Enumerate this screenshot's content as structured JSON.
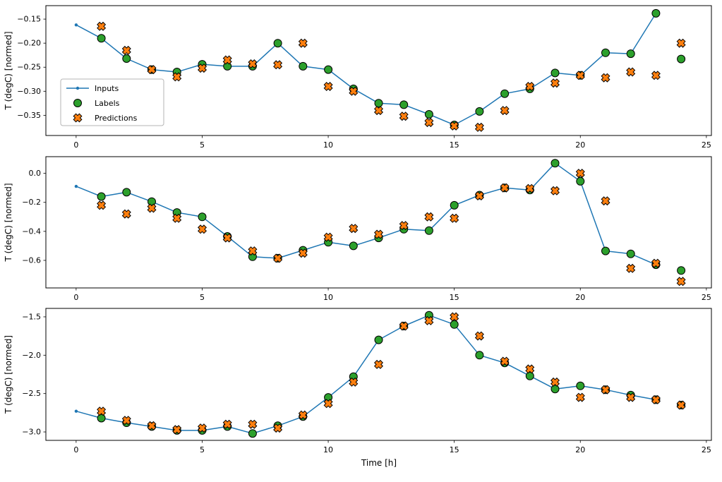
{
  "figure": {
    "background": "#ffffff",
    "xlabel": "Time [h]",
    "ylabel": "T (degC) [normed]",
    "legend": {
      "position": "upper-left-of-first-subplot",
      "items": [
        {
          "label": "Inputs",
          "type": "line-dot",
          "color": "#1f77b4"
        },
        {
          "label": "Labels",
          "type": "circle",
          "color": "#2ca02c"
        },
        {
          "label": "Predictions",
          "type": "x",
          "color": "#ff7f0e"
        }
      ]
    },
    "marker_edge_color": "#000000"
  },
  "chart_data": [
    {
      "type": "line",
      "title": "",
      "xlabel": "",
      "ylabel": "T (degC) [normed]",
      "xlim": [
        -1.2,
        25.2
      ],
      "ylim": [
        -0.392,
        -0.122
      ],
      "grid": false,
      "xticks": [
        {
          "v": 0,
          "label": "0"
        },
        {
          "v": 5,
          "label": "5"
        },
        {
          "v": 10,
          "label": "10"
        },
        {
          "v": 15,
          "label": "15"
        },
        {
          "v": 20,
          "label": "20"
        },
        {
          "v": 25,
          "label": "25"
        }
      ],
      "yticks": [
        {
          "v": -0.15,
          "label": "−0.15"
        },
        {
          "v": -0.2,
          "label": "−0.20"
        },
        {
          "v": -0.25,
          "label": "−0.25"
        },
        {
          "v": -0.3,
          "label": "−0.30"
        },
        {
          "v": -0.35,
          "label": "−0.35"
        }
      ],
      "series": [
        {
          "name": "Inputs",
          "type": "line",
          "color": "#1f77b4",
          "x": [
            0,
            1,
            2,
            3,
            4,
            5,
            6,
            7,
            8,
            9,
            10,
            11,
            12,
            13,
            14,
            15,
            16,
            17,
            18,
            19,
            20,
            21,
            22,
            23
          ],
          "y": [
            -0.162,
            -0.19,
            -0.232,
            -0.255,
            -0.26,
            -0.244,
            -0.248,
            -0.248,
            -0.2,
            -0.248,
            -0.255,
            -0.295,
            -0.325,
            -0.328,
            -0.348,
            -0.37,
            -0.342,
            -0.305,
            -0.295,
            -0.262,
            -0.267,
            -0.22,
            -0.222,
            -0.138
          ]
        },
        {
          "name": "Labels",
          "type": "scatter-circle",
          "color": "#2ca02c",
          "x": [
            1,
            2,
            3,
            4,
            5,
            6,
            7,
            8,
            9,
            10,
            11,
            12,
            13,
            14,
            15,
            16,
            17,
            18,
            19,
            20,
            21,
            22,
            23,
            24
          ],
          "y": [
            -0.19,
            -0.232,
            -0.255,
            -0.26,
            -0.244,
            -0.248,
            -0.248,
            -0.2,
            -0.248,
            -0.255,
            -0.295,
            -0.325,
            -0.328,
            -0.348,
            -0.37,
            -0.342,
            -0.305,
            -0.295,
            -0.262,
            -0.267,
            -0.22,
            -0.222,
            -0.138,
            -0.233
          ]
        },
        {
          "name": "Predictions",
          "type": "scatter-x",
          "color": "#ff7f0e",
          "x": [
            1,
            2,
            3,
            4,
            5,
            6,
            7,
            8,
            9,
            10,
            11,
            12,
            13,
            14,
            15,
            16,
            17,
            18,
            19,
            20,
            21,
            22,
            23,
            24
          ],
          "y": [
            -0.165,
            -0.215,
            -0.255,
            -0.27,
            -0.252,
            -0.235,
            -0.243,
            -0.245,
            -0.2,
            -0.29,
            -0.3,
            -0.34,
            -0.352,
            -0.365,
            -0.372,
            -0.375,
            -0.34,
            -0.29,
            -0.283,
            -0.267,
            -0.272,
            -0.26,
            -0.267,
            -0.2
          ]
        }
      ]
    },
    {
      "type": "line",
      "title": "",
      "xlabel": "",
      "ylabel": "T (degC) [normed]",
      "xlim": [
        -1.2,
        25.2
      ],
      "ylim": [
        -0.79,
        0.115
      ],
      "grid": false,
      "xticks": [
        {
          "v": 0,
          "label": "0"
        },
        {
          "v": 5,
          "label": "5"
        },
        {
          "v": 10,
          "label": "10"
        },
        {
          "v": 15,
          "label": "15"
        },
        {
          "v": 20,
          "label": "20"
        },
        {
          "v": 25,
          "label": "25"
        }
      ],
      "yticks": [
        {
          "v": 0.0,
          "label": "0.0"
        },
        {
          "v": -0.2,
          "label": "−0.2"
        },
        {
          "v": -0.4,
          "label": "−0.4"
        },
        {
          "v": -0.6,
          "label": "−0.6"
        }
      ],
      "series": [
        {
          "name": "Inputs",
          "type": "line",
          "color": "#1f77b4",
          "x": [
            0,
            1,
            2,
            3,
            4,
            5,
            6,
            7,
            8,
            9,
            10,
            11,
            12,
            13,
            14,
            15,
            16,
            17,
            18,
            19,
            20,
            21,
            22,
            23
          ],
          "y": [
            -0.09,
            -0.16,
            -0.13,
            -0.195,
            -0.27,
            -0.3,
            -0.435,
            -0.575,
            -0.585,
            -0.53,
            -0.475,
            -0.5,
            -0.445,
            -0.385,
            -0.395,
            -0.22,
            -0.15,
            -0.1,
            -0.115,
            0.07,
            -0.055,
            -0.535,
            -0.555,
            -0.63
          ]
        },
        {
          "name": "Labels",
          "type": "scatter-circle",
          "color": "#2ca02c",
          "x": [
            1,
            2,
            3,
            4,
            5,
            6,
            7,
            8,
            9,
            10,
            11,
            12,
            13,
            14,
            15,
            16,
            17,
            18,
            19,
            20,
            21,
            22,
            23,
            24
          ],
          "y": [
            -0.16,
            -0.13,
            -0.195,
            -0.27,
            -0.3,
            -0.435,
            -0.575,
            -0.585,
            -0.53,
            -0.475,
            -0.5,
            -0.445,
            -0.385,
            -0.395,
            -0.22,
            -0.15,
            -0.1,
            -0.115,
            0.07,
            -0.055,
            -0.535,
            -0.555,
            -0.63,
            -0.67
          ]
        },
        {
          "name": "Predictions",
          "type": "scatter-x",
          "color": "#ff7f0e",
          "x": [
            1,
            2,
            3,
            4,
            5,
            6,
            7,
            8,
            9,
            10,
            11,
            12,
            13,
            14,
            15,
            16,
            17,
            18,
            19,
            20,
            21,
            22,
            23,
            24
          ],
          "y": [
            -0.22,
            -0.28,
            -0.24,
            -0.31,
            -0.385,
            -0.445,
            -0.535,
            -0.585,
            -0.55,
            -0.44,
            -0.38,
            -0.42,
            -0.36,
            -0.3,
            -0.31,
            -0.155,
            -0.1,
            -0.105,
            -0.12,
            0.0,
            -0.19,
            -0.655,
            -0.62,
            -0.745
          ]
        }
      ]
    },
    {
      "type": "line",
      "title": "",
      "xlabel": "Time [h]",
      "ylabel": "T (degC) [normed]",
      "xlim": [
        -1.2,
        25.2
      ],
      "ylim": [
        -3.11,
        -1.39
      ],
      "grid": false,
      "xticks": [
        {
          "v": 0,
          "label": "0"
        },
        {
          "v": 5,
          "label": "5"
        },
        {
          "v": 10,
          "label": "10"
        },
        {
          "v": 15,
          "label": "15"
        },
        {
          "v": 20,
          "label": "20"
        },
        {
          "v": 25,
          "label": "25"
        }
      ],
      "yticks": [
        {
          "v": -1.5,
          "label": "−1.5"
        },
        {
          "v": -2.0,
          "label": "−2.0"
        },
        {
          "v": -2.5,
          "label": "−2.5"
        },
        {
          "v": -3.0,
          "label": "−3.0"
        }
      ],
      "series": [
        {
          "name": "Inputs",
          "type": "line",
          "color": "#1f77b4",
          "x": [
            0,
            1,
            2,
            3,
            4,
            5,
            6,
            7,
            8,
            9,
            10,
            11,
            12,
            13,
            14,
            15,
            16,
            17,
            18,
            19,
            20,
            21,
            22,
            23
          ],
          "y": [
            -2.73,
            -2.82,
            -2.88,
            -2.93,
            -2.98,
            -2.98,
            -2.93,
            -3.02,
            -2.92,
            -2.8,
            -2.55,
            -2.28,
            -1.8,
            -1.62,
            -1.48,
            -1.6,
            -2.0,
            -2.1,
            -2.27,
            -2.44,
            -2.4,
            -2.45,
            -2.52,
            -2.58
          ]
        },
        {
          "name": "Labels",
          "type": "scatter-circle",
          "color": "#2ca02c",
          "x": [
            1,
            2,
            3,
            4,
            5,
            6,
            7,
            8,
            9,
            10,
            11,
            12,
            13,
            14,
            15,
            16,
            17,
            18,
            19,
            20,
            21,
            22,
            23,
            24
          ],
          "y": [
            -2.82,
            -2.88,
            -2.93,
            -2.98,
            -2.98,
            -2.93,
            -3.02,
            -2.92,
            -2.8,
            -2.55,
            -2.28,
            -1.8,
            -1.62,
            -1.48,
            -1.6,
            -2.0,
            -2.1,
            -2.27,
            -2.44,
            -2.4,
            -2.45,
            -2.52,
            -2.58,
            -2.65
          ]
        },
        {
          "name": "Predictions",
          "type": "scatter-x",
          "color": "#ff7f0e",
          "x": [
            1,
            2,
            3,
            4,
            5,
            6,
            7,
            8,
            9,
            10,
            11,
            12,
            13,
            14,
            15,
            16,
            17,
            18,
            19,
            20,
            21,
            22,
            23,
            24
          ],
          "y": [
            -2.73,
            -2.85,
            -2.92,
            -2.97,
            -2.95,
            -2.9,
            -2.9,
            -2.95,
            -2.78,
            -2.63,
            -2.35,
            -2.12,
            -1.62,
            -1.55,
            -1.5,
            -1.75,
            -2.08,
            -2.18,
            -2.35,
            -2.55,
            -2.45,
            -2.55,
            -2.58,
            -2.65
          ]
        }
      ]
    }
  ]
}
